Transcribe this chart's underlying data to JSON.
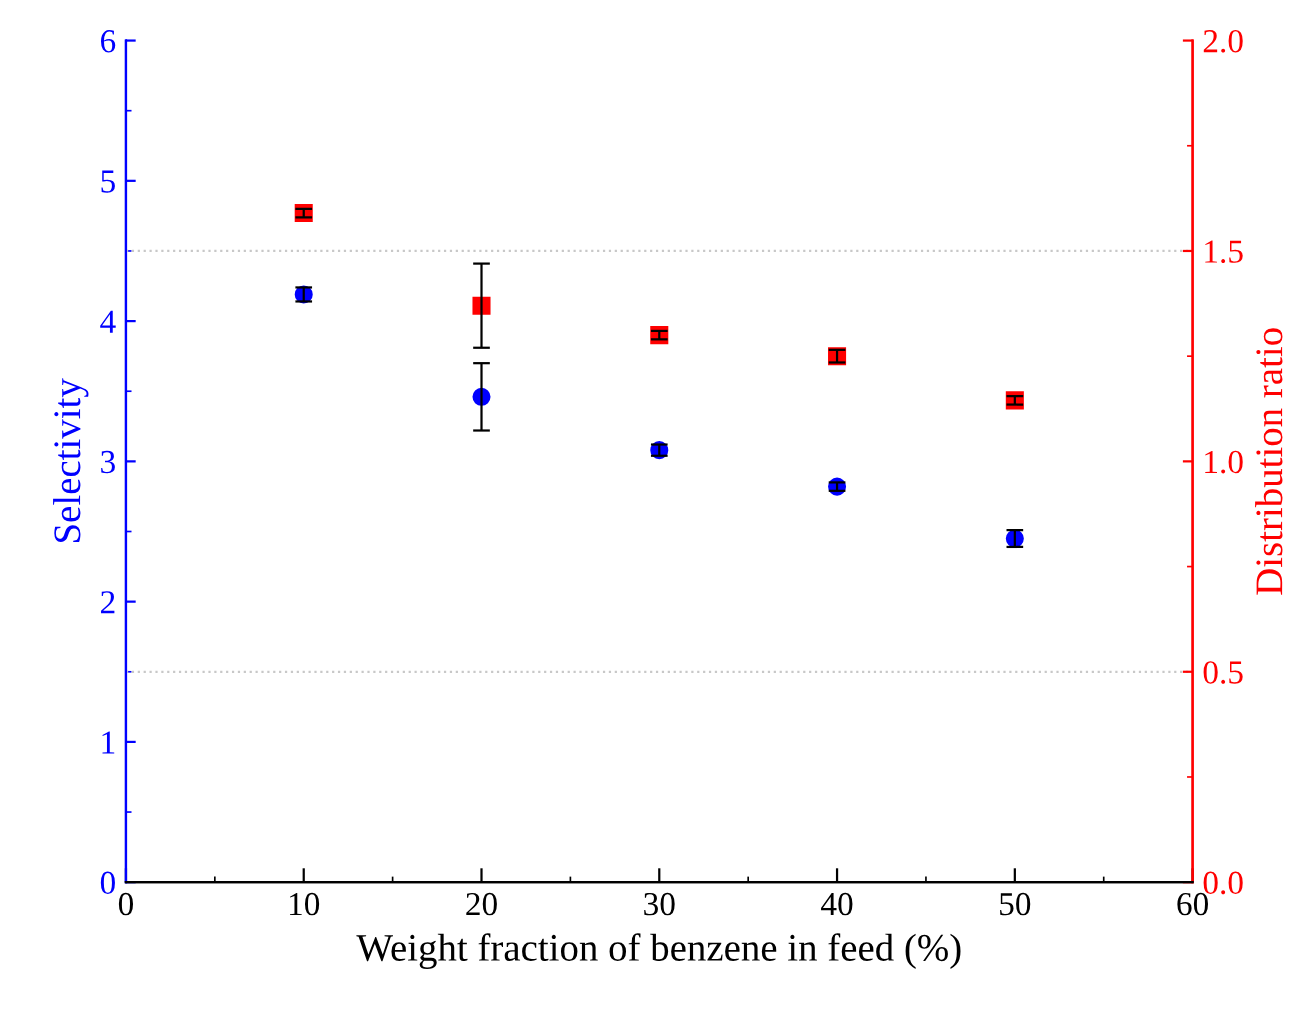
{
  "chart_data": {
    "type": "scatter",
    "xlabel": "Weight fraction of benzene in feed (%)",
    "ylabel": "Selectivity",
    "y2label": "Distribution ratio",
    "xlim": [
      0,
      60
    ],
    "xticks": [
      0,
      10,
      20,
      30,
      40,
      50,
      60
    ],
    "ylim": [
      0,
      6
    ],
    "yticks": [
      0,
      1,
      2,
      3,
      4,
      5,
      6
    ],
    "y2lim": [
      0,
      2.0
    ],
    "y2ticks": [
      {
        "value": 0,
        "label": "0.0"
      },
      {
        "value": 0.5,
        "label": "0.5"
      },
      {
        "value": 1.0,
        "label": "1.0"
      },
      {
        "value": 1.5,
        "label": "1.5"
      },
      {
        "value": 2.0,
        "label": "2.0"
      }
    ],
    "x": [
      10,
      20,
      30,
      40,
      50
    ],
    "series": [
      {
        "color": "#0000ff",
        "marker": "circle",
        "values": [
          4.19,
          3.46,
          3.08,
          2.82,
          2.45
        ],
        "errors": [
          0.05,
          0.24,
          0.04,
          0.03,
          0.06
        ]
      },
      {
        "color": "#ff0000",
        "marker": "square",
        "axis": "y2",
        "values": [
          1.59,
          1.37,
          1.3,
          1.25,
          1.145
        ],
        "errors": [
          0.01,
          0.1,
          0.01,
          0.015,
          0.01
        ]
      }
    ],
    "ref_lines": [
      {
        "axis": "y2",
        "value": 0.5,
        "color": "#c8c8c8",
        "line_style": "dotted"
      },
      {
        "axis": "y2",
        "value": 1.5,
        "color": "#c8c8c8",
        "line_style": "dotted"
      }
    ],
    "grid": false,
    "legend": false
  }
}
